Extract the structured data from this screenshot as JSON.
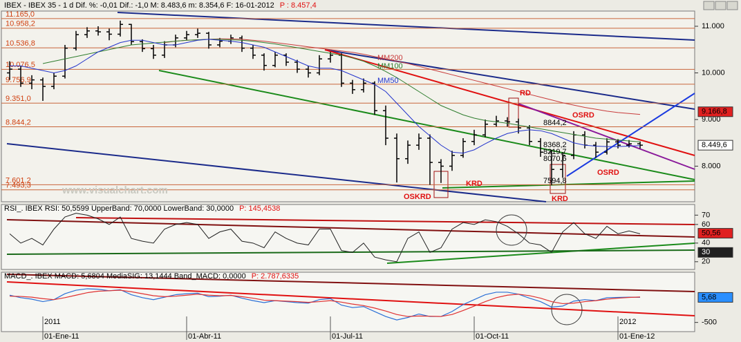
{
  "chart_data": [
    {
      "type": "ohlc",
      "title": "IBEX - IBEX 35 - 1 d Dif. %: -0,01 Dif.: -1,0 M: 8.483,6 m: 8.354,6 F: 16-01-2012",
      "title_price": "P : 8.457,4",
      "watermark": "www.visualchart.com",
      "categories": [
        null,
        null,
        null,
        "01-Ene-11",
        null,
        null,
        null,
        null,
        null,
        null,
        null,
        null,
        null,
        null,
        null,
        null,
        "01-Abr-11",
        null,
        null,
        null,
        null,
        null,
        null,
        null,
        null,
        null,
        null,
        null,
        null,
        "01-Jul-11",
        null,
        null,
        null,
        null,
        null,
        null,
        null,
        null,
        null,
        null,
        null,
        null,
        "01-Oct-11",
        null,
        null,
        null,
        null,
        null,
        null,
        null,
        null,
        null,
        null,
        null,
        null,
        "01-Ene-12",
        null,
        null
      ],
      "year_labels": [
        "2011",
        "2012"
      ],
      "open": [
        10000,
        10080,
        9780,
        9850,
        9710,
        9930,
        10530,
        10820,
        10900,
        10880,
        10830,
        11040,
        10670,
        10520,
        10380,
        10600,
        10750,
        10820,
        10850,
        10600,
        10680,
        10750,
        10530,
        10380,
        10160,
        10380,
        10230,
        10080,
        10000,
        10300,
        10380,
        9780,
        9640,
        9780,
        9190,
        8600,
        8160,
        8450,
        8600,
        8080,
        8000,
        8230,
        8530,
        8670,
        8900,
        8970,
        8950,
        8820,
        8530,
        8300,
        7930,
        8230,
        8670,
        8450,
        8300,
        8520,
        8450,
        8480
      ],
      "high": [
        10250,
        10150,
        9950,
        9900,
        10000,
        10600,
        10900,
        10980,
        11000,
        10950,
        11120,
        11050,
        10720,
        10600,
        10680,
        10820,
        10900,
        10950,
        10880,
        10750,
        10820,
        10800,
        10600,
        10420,
        10450,
        10420,
        10280,
        10150,
        10380,
        10450,
        10420,
        9850,
        9880,
        9820,
        9300,
        8700,
        8550,
        8700,
        8680,
        8150,
        8330,
        8600,
        8780,
        9000,
        9080,
        9050,
        9020,
        8880,
        8600,
        8350,
        8300,
        8750,
        8750,
        8520,
        8600,
        8580,
        8560,
        8530
      ],
      "low": [
        9850,
        9700,
        9650,
        9400,
        9650,
        9880,
        10480,
        10750,
        10800,
        10700,
        10780,
        10600,
        10450,
        10300,
        10320,
        10550,
        10700,
        10750,
        10520,
        10550,
        10620,
        10450,
        10300,
        10050,
        10120,
        10150,
        10000,
        9900,
        9950,
        10220,
        9700,
        9550,
        9580,
        9100,
        8450,
        7650,
        8050,
        8350,
        7600,
        7640,
        7900,
        8180,
        8450,
        8620,
        8850,
        8850,
        8700,
        8450,
        8200,
        7595,
        7750,
        8150,
        8380,
        8180,
        8250,
        8380,
        8400,
        8380
      ],
      "close": [
        10080,
        9780,
        9850,
        9710,
        9930,
        10530,
        10820,
        10900,
        10880,
        10830,
        11040,
        10670,
        10520,
        10380,
        10600,
        10750,
        10820,
        10850,
        10600,
        10680,
        10750,
        10530,
        10380,
        10160,
        10380,
        10230,
        10080,
        10000,
        10300,
        10380,
        9780,
        9640,
        9780,
        9190,
        8600,
        8160,
        8450,
        8600,
        8080,
        8000,
        8230,
        8530,
        8670,
        8900,
        8970,
        8950,
        8820,
        8530,
        8300,
        7930,
        8230,
        8670,
        8450,
        8300,
        8520,
        8450,
        8480,
        8450
      ],
      "series": [
        {
          "name": "MM200",
          "color": "#c83a3a",
          "values": [
            null,
            null,
            null,
            null,
            null,
            null,
            null,
            null,
            null,
            null,
            null,
            null,
            null,
            null,
            10650,
            10680,
            10700,
            10710,
            10720,
            10730,
            10730,
            10720,
            10700,
            10680,
            10650,
            10620,
            10590,
            10560,
            10530,
            10500,
            10470,
            10440,
            10400,
            10350,
            10300,
            10250,
            10200,
            10140,
            10080,
            10020,
            9960,
            9900,
            9840,
            9780,
            9720,
            9660,
            9600,
            9540,
            9480,
            9420,
            9360,
            9310,
            9260,
            9220,
            9180,
            9150,
            9130,
            9110
          ]
        },
        {
          "name": "MM100",
          "color": "#2e7d2e",
          "values": [
            null,
            null,
            null,
            10200,
            10250,
            10300,
            10350,
            10400,
            10450,
            10500,
            10550,
            10600,
            10620,
            10640,
            10660,
            10680,
            10700,
            10710,
            10720,
            10720,
            10710,
            10700,
            10680,
            10650,
            10620,
            10580,
            10540,
            10500,
            10460,
            10420,
            10380,
            10320,
            10250,
            10150,
            10030,
            9900,
            9750,
            9600,
            9450,
            9300,
            9200,
            9100,
            9030,
            8980,
            8950,
            8920,
            8880,
            8840,
            8800,
            8760,
            8720,
            8680,
            8640,
            8600,
            8580,
            8560,
            8540,
            8520
          ]
        },
        {
          "name": "MM50",
          "color": "#2233cc",
          "values": [
            10150,
            10150,
            10100,
            10050,
            10000,
            10050,
            10150,
            10300,
            10450,
            10550,
            10650,
            10700,
            10700,
            10650,
            10600,
            10600,
            10650,
            10700,
            10720,
            10700,
            10680,
            10650,
            10600,
            10550,
            10450,
            10350,
            10250,
            10150,
            10100,
            10100,
            10050,
            9950,
            9850,
            9750,
            9600,
            9350,
            9100,
            8850,
            8650,
            8450,
            8300,
            8280,
            8350,
            8480,
            8600,
            8700,
            8750,
            8780,
            8760,
            8700,
            8600,
            8500,
            8450,
            8430,
            8420,
            8420,
            8430,
            8440
          ]
        }
      ],
      "levels": [
        {
          "value": 11165.0,
          "label": "11.165,0"
        },
        {
          "value": 10958.2,
          "label": "10.958,2"
        },
        {
          "value": 10536.8,
          "label": "10.536,8"
        },
        {
          "value": 10076.5,
          "label": "10.076,5"
        },
        {
          "value": 9756.9,
          "label": "9.756,9"
        },
        {
          "value": 9351.0,
          "label": "9.351,0"
        },
        {
          "value": 8844.2,
          "label": "8.844,2"
        },
        {
          "value": 7601.2,
          "label": "7.601,2"
        },
        {
          "value": 7493.3,
          "label": "7.493,3"
        }
      ],
      "annotations": [
        {
          "text": "RD",
          "color": "#e01010"
        },
        {
          "text": "OSRD",
          "color": "#e01010"
        },
        {
          "text": "OSRD",
          "color": "#e01010"
        },
        {
          "text": "KRD",
          "color": "#e01010"
        },
        {
          "text": "KRD",
          "color": "#e01010"
        },
        {
          "text": "OSKRD",
          "color": "#e01010"
        },
        {
          "text": "8844,2",
          "color": "#000000"
        },
        {
          "text": "8368,2",
          "color": "#000000"
        },
        {
          "text": "8219,7",
          "color": "#000000"
        },
        {
          "text": "8070,6",
          "color": "#000000"
        },
        {
          "text": "7594,8",
          "color": "#000000"
        }
      ],
      "last_labels": [
        {
          "value": 9166.8,
          "label": "9.166,8",
          "color": "#e02020"
        },
        {
          "value": 8449.6,
          "label": "8.449,6",
          "color": "#ffffff"
        }
      ],
      "ylim": [
        7237,
        11326
      ],
      "yticks": [
        {
          "value": 8000,
          "label": "8.000"
        },
        {
          "value": 9000,
          "label": "9.000"
        },
        {
          "value": 10000,
          "label": "10.000"
        },
        {
          "value": 11000,
          "label": "11.000"
        }
      ]
    },
    {
      "type": "line",
      "title": "RSI_. IBEX RSI: 50,5599 UpperBand: 70,0000 LowerBand: 30,0000",
      "title_price": "P: 145,4538",
      "color": "#202020",
      "values": [
        50,
        40,
        45,
        38,
        55,
        68,
        72,
        70,
        66,
        60,
        68,
        45,
        42,
        40,
        55,
        60,
        62,
        60,
        45,
        52,
        55,
        42,
        40,
        35,
        52,
        45,
        40,
        38,
        55,
        55,
        32,
        30,
        40,
        25,
        22,
        20,
        45,
        52,
        30,
        35,
        55,
        62,
        60,
        65,
        63,
        58,
        50,
        40,
        38,
        30,
        52,
        62,
        50,
        45,
        58,
        50,
        53,
        50
      ],
      "last_labels": [
        {
          "value": 50.56,
          "label": "50,56",
          "color": "#e02020"
        },
        {
          "value": 30,
          "color": "#202020"
        }
      ],
      "ylim": [
        11.7,
        81.4
      ],
      "yticks": [
        20,
        40,
        60,
        70
      ]
    },
    {
      "type": "line",
      "title": "MACD_. IBEX MACD: 5,6804 MediaSIG: 13,1444 Band_MACD: 0,0000",
      "title_price": "P: 2.787,6335",
      "series": [
        {
          "color": "#2a6fd6",
          "values": [
            50,
            0,
            -30,
            -80,
            -40,
            80,
            150,
            180,
            170,
            140,
            160,
            60,
            0,
            -40,
            10,
            60,
            80,
            90,
            20,
            30,
            50,
            -10,
            -60,
            -100,
            -60,
            -80,
            -100,
            -110,
            -40,
            -20,
            -150,
            -200,
            -180,
            -280,
            -380,
            -450,
            -400,
            -330,
            -380,
            -380,
            -280,
            -140,
            -40,
            60,
            110,
            110,
            70,
            -10,
            -80,
            -190,
            -170,
            -70,
            -40,
            -60,
            0,
            5,
            10,
            6
          ]
        },
        {
          "color": "#e03030",
          "values": [
            30,
            25,
            10,
            -20,
            -40,
            0,
            50,
            100,
            130,
            140,
            150,
            120,
            80,
            40,
            20,
            30,
            50,
            70,
            50,
            40,
            45,
            20,
            -10,
            -50,
            -60,
            -70,
            -80,
            -95,
            -80,
            -60,
            -90,
            -130,
            -160,
            -210,
            -270,
            -340,
            -380,
            -370,
            -375,
            -380,
            -340,
            -260,
            -170,
            -80,
            0,
            50,
            70,
            40,
            -10,
            -80,
            -120,
            -110,
            -80,
            -60,
            -30,
            -10,
            5,
            13
          ]
        }
      ],
      "last_labels": [
        {
          "value": 5.68,
          "label": "5,68",
          "color": "#2a8fff"
        }
      ],
      "ylim": [
        -686,
        514
      ],
      "yticks": [
        -500
      ]
    }
  ]
}
